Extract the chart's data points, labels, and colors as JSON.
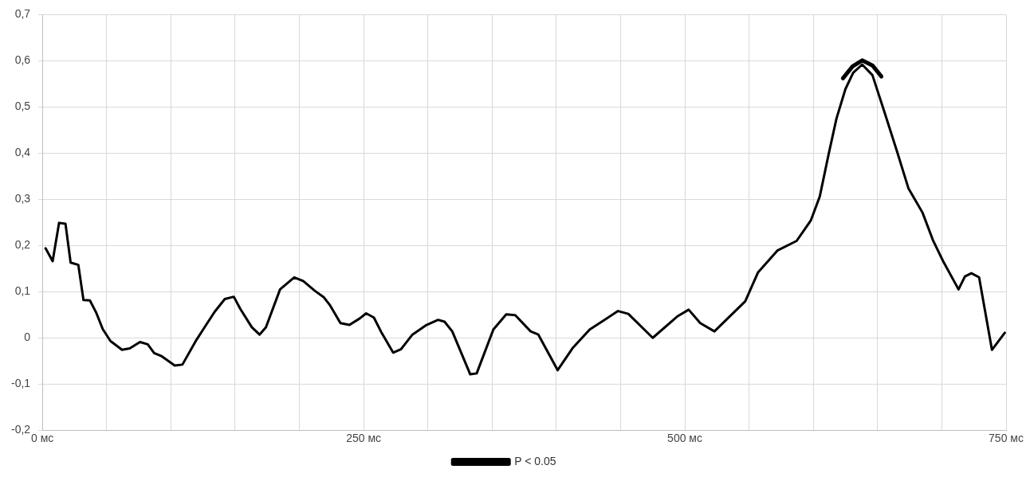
{
  "chart_data": {
    "type": "line",
    "xlim": [
      0,
      750
    ],
    "ylim": [
      -0.2,
      0.7
    ],
    "xticks": [
      {
        "value": 0,
        "label": "0 мс"
      },
      {
        "value": 50,
        "label": null
      },
      {
        "value": 100,
        "label": null
      },
      {
        "value": 150,
        "label": null
      },
      {
        "value": 200,
        "label": null
      },
      {
        "value": 250,
        "label": "250 мс"
      },
      {
        "value": 300,
        "label": null
      },
      {
        "value": 350,
        "label": null
      },
      {
        "value": 400,
        "label": null
      },
      {
        "value": 450,
        "label": null
      },
      {
        "value": 500,
        "label": "500 мс"
      },
      {
        "value": 550,
        "label": null
      },
      {
        "value": 600,
        "label": null
      },
      {
        "value": 650,
        "label": null
      },
      {
        "value": 700,
        "label": null
      },
      {
        "value": 750,
        "label": "750 мс"
      }
    ],
    "yticks": [
      {
        "value": -0.2,
        "label": "-0,2"
      },
      {
        "value": -0.1,
        "label": "-0,1"
      },
      0,
      {
        "value": 0.1,
        "label": "0,1"
      },
      {
        "value": 0.2,
        "label": "0,2"
      },
      {
        "value": 0.3,
        "label": "0,3"
      },
      {
        "value": 0.4,
        "label": "0,4"
      },
      {
        "value": 0.5,
        "label": "0,5"
      },
      {
        "value": 0.6,
        "label": "0,6"
      },
      {
        "value": 0.7,
        "label": "0,7"
      }
    ],
    "grid": true,
    "legend": "bottom",
    "marker": "none",
    "line_style": "solid",
    "series": [
      {
        "color": "#000000",
        "x": [
          2.5,
          8,
          13,
          18,
          22,
          28,
          32,
          37,
          42,
          47,
          53,
          62,
          68,
          76,
          82,
          87,
          93,
          103,
          109,
          120,
          134,
          142,
          149,
          154,
          163,
          169,
          174,
          185,
          196,
          203,
          212,
          219,
          224,
          232,
          239,
          247,
          252,
          258,
          264,
          273,
          279,
          288,
          299,
          308,
          313,
          319,
          333,
          338,
          351,
          361,
          368,
          380,
          386,
          401,
          413,
          426,
          448,
          456,
          475,
          494,
          503,
          512,
          523,
          547,
          557,
          572,
          587,
          598,
          605,
          612,
          618,
          625,
          631,
          638,
          646,
          655,
          665,
          674,
          685,
          693,
          701,
          713,
          718,
          723,
          729,
          739,
          749
        ],
        "values": [
          0.194,
          0.166,
          0.249,
          0.247,
          0.163,
          0.158,
          0.082,
          0.081,
          0.054,
          0.019,
          -0.007,
          -0.026,
          -0.023,
          -0.009,
          -0.014,
          -0.033,
          -0.04,
          -0.06,
          -0.058,
          -0.004,
          0.056,
          0.084,
          0.089,
          0.063,
          0.023,
          0.007,
          0.023,
          0.105,
          0.131,
          0.123,
          0.102,
          0.088,
          0.07,
          0.032,
          0.028,
          0.042,
          0.053,
          0.044,
          0.011,
          -0.032,
          -0.025,
          0.007,
          0.028,
          0.039,
          0.035,
          0.014,
          -0.079,
          -0.077,
          0.018,
          0.051,
          0.049,
          0.014,
          0.007,
          -0.07,
          -0.021,
          0.018,
          0.058,
          0.052,
          0.0,
          0.046,
          0.061,
          0.032,
          0.014,
          0.079,
          0.142,
          0.189,
          0.21,
          0.254,
          0.306,
          0.399,
          0.475,
          0.539,
          0.574,
          0.592,
          0.569,
          0.492,
          0.405,
          0.324,
          0.271,
          0.212,
          0.166,
          0.105,
          0.133,
          0.14,
          0.131,
          -0.026,
          0.011
        ]
      },
      {
        "name": "P < 0.05",
        "color": "#000000",
        "x": [
          623,
          630.5,
          638,
          646,
          653
        ],
        "values": [
          0.562,
          0.588,
          0.601,
          0.59,
          0.566
        ]
      }
    ]
  }
}
